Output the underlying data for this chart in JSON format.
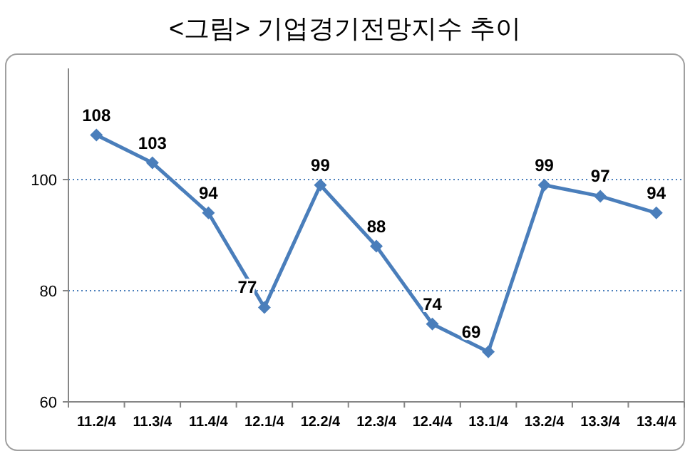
{
  "chart_data": {
    "type": "line",
    "title": "<그림> 기업경기전망지수 추이",
    "categories": [
      "11.2/4",
      "11.3/4",
      "11.4/4",
      "12.1/4",
      "12.2/4",
      "12.3/4",
      "12.4/4",
      "13.1/4",
      "13.2/4",
      "13.3/4",
      "13.4/4"
    ],
    "series": [
      {
        "color": "#4a7ebb",
        "values": [
          108,
          103,
          94,
          77,
          99,
          88,
          74,
          69,
          99,
          97,
          94
        ]
      }
    ],
    "ylim": [
      60,
      120
    ],
    "yticks": [
      60,
      80,
      100
    ],
    "grid": "y",
    "marker": "diamond",
    "line_style": "solid",
    "data_labels": true
  }
}
